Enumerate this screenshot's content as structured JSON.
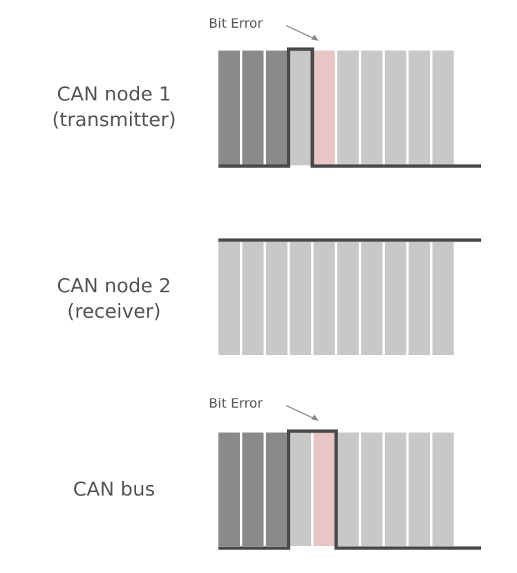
{
  "rows": [
    {
      "id": "node1",
      "label_line1": "CAN node 1",
      "label_line2": "(transmitter)",
      "bit_count": 10,
      "bit_fills": [
        "dark",
        "dark",
        "dark",
        "light",
        "error",
        "light",
        "light",
        "light",
        "light",
        "light"
      ],
      "signal_levels": [
        0,
        0,
        0,
        1,
        0,
        0,
        0,
        0,
        0,
        0,
        0
      ],
      "annotation": "Bit Error"
    },
    {
      "id": "node2",
      "label_line1": "CAN node 2",
      "label_line2": "(receiver)",
      "bit_count": 10,
      "bit_fills": [
        "light",
        "light",
        "light",
        "light",
        "light",
        "light",
        "light",
        "light",
        "light",
        "light"
      ],
      "signal_levels": [
        1,
        1,
        1,
        1,
        1,
        1,
        1,
        1,
        1,
        1,
        1
      ],
      "annotation": ""
    },
    {
      "id": "bus",
      "label_line1": "CAN bus",
      "label_line2": "",
      "bit_count": 10,
      "bit_fills": [
        "dark",
        "dark",
        "dark",
        "light",
        "error",
        "light",
        "light",
        "light",
        "light",
        "light"
      ],
      "signal_levels": [
        0,
        0,
        0,
        1,
        1,
        0,
        0,
        0,
        0,
        0,
        0
      ],
      "annotation": "Bit Error"
    }
  ],
  "colors": {
    "dark_bit": "#8a8a8a",
    "light_bit": "#c8c8c8",
    "error_bit": "#e8c6c6",
    "signal_line": "#4a4a4a",
    "annotation_arrow": "#8a8a8a",
    "label_text": "#555555"
  }
}
